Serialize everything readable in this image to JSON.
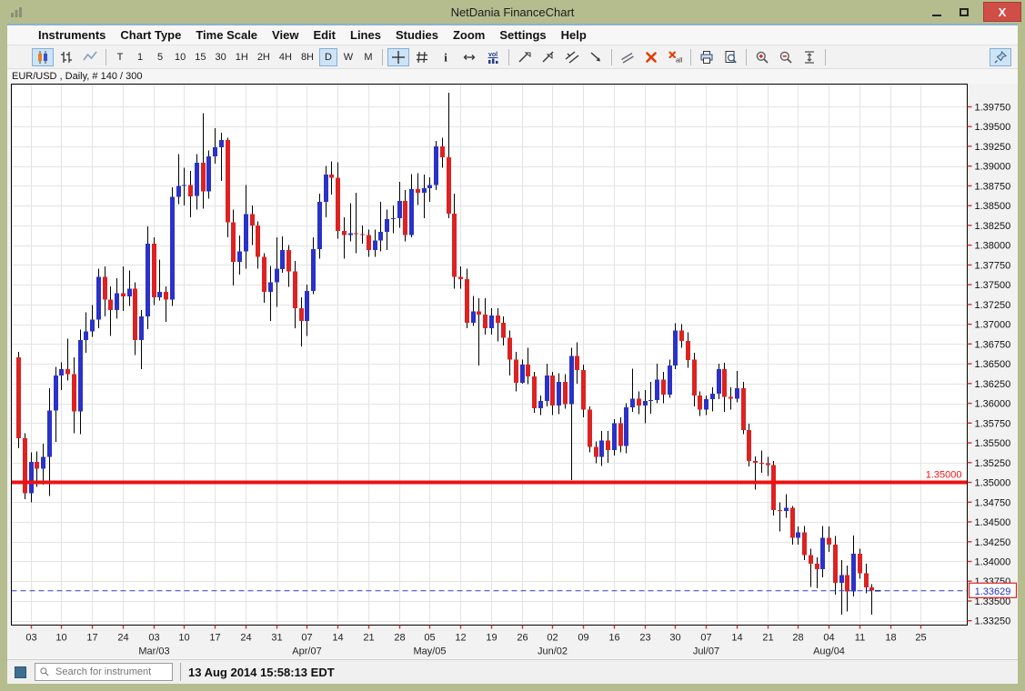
{
  "window": {
    "title": "NetDania FinanceChart",
    "controls": {
      "minimize": "minimize",
      "maximize": "maximize",
      "close": "close"
    }
  },
  "menu": {
    "items": [
      "Instruments",
      "Chart Type",
      "Time Scale",
      "View",
      "Edit",
      "Lines",
      "Studies",
      "Zoom",
      "Settings",
      "Help"
    ]
  },
  "toolbar": {
    "chart_type_buttons": [
      {
        "name": "candlestick-chart",
        "selected": true
      },
      {
        "name": "bar-chart",
        "selected": false
      },
      {
        "name": "line-chart",
        "selected": false
      }
    ],
    "timeframes": {
      "options": [
        "T",
        "1",
        "5",
        "10",
        "15",
        "30",
        "1H",
        "2H",
        "4H",
        "8H",
        "D",
        "W",
        "M"
      ],
      "selected": "D"
    },
    "tool_groups": [
      [
        {
          "name": "crosshair",
          "selected": true
        },
        {
          "name": "grid",
          "selected": false
        },
        {
          "name": "info",
          "selected": false
        },
        {
          "name": "horizontal-scale",
          "selected": false
        },
        {
          "name": "volume",
          "selected": false
        }
      ],
      [
        {
          "name": "trend-line",
          "selected": false
        },
        {
          "name": "trend-line-extended",
          "selected": false
        },
        {
          "name": "parallel-channel",
          "selected": false
        },
        {
          "name": "arrow-tool",
          "selected": false
        }
      ],
      [
        {
          "name": "angle-lines",
          "selected": false
        },
        {
          "name": "delete-line",
          "selected": false
        },
        {
          "name": "delete-all-lines",
          "selected": false
        }
      ],
      [
        {
          "name": "print",
          "selected": false
        },
        {
          "name": "print-preview",
          "selected": false
        }
      ],
      [
        {
          "name": "zoom-in",
          "selected": false
        },
        {
          "name": "zoom-out",
          "selected": false
        },
        {
          "name": "fit-vertical",
          "selected": false
        }
      ]
    ],
    "pin_button": {
      "name": "pin",
      "selected": true
    }
  },
  "chart": {
    "instrument_label": "EUR/USD , Daily, # 140 / 300"
  },
  "chart_data": {
    "type": "candlestick",
    "instrument": "EUR/USD",
    "timeframe": "Daily",
    "bars_shown": "140 / 300",
    "colors": {
      "up_candle": "#2a32c8",
      "down_candle": "#dd2222",
      "wick": "#000000",
      "grid": "#e4e4e4",
      "level_line": "#ee1111",
      "last_price_line": "#2b3fd6",
      "badge_text": "#2233cc",
      "badge_border": "#dd2222",
      "tick": "#cc3333"
    },
    "y_axis": {
      "min": 1.3325,
      "max": 1.3975,
      "step": 0.0025,
      "decimals": 5,
      "top_price": 1.40037,
      "bottom_price": 1.33195
    },
    "levels": [
      {
        "price": 1.35,
        "label": "1.35000",
        "style": "solid",
        "width": 4
      },
      {
        "price": 1.33629,
        "label": "1.33629",
        "style": "dashed",
        "width": 1,
        "badge": true
      }
    ],
    "last_price": "1.33629",
    "x_ticks": [
      {
        "i": 2,
        "label": "03"
      },
      {
        "i": 7,
        "label": "10"
      },
      {
        "i": 12,
        "label": "17"
      },
      {
        "i": 17,
        "label": "24"
      },
      {
        "i": 22,
        "label": "03",
        "month": "Mar/03"
      },
      {
        "i": 27,
        "label": "10"
      },
      {
        "i": 32,
        "label": "17"
      },
      {
        "i": 37,
        "label": "24"
      },
      {
        "i": 42,
        "label": "31"
      },
      {
        "i": 47,
        "label": "07",
        "month": "Apr/07"
      },
      {
        "i": 52,
        "label": "14"
      },
      {
        "i": 57,
        "label": "21"
      },
      {
        "i": 62,
        "label": "28"
      },
      {
        "i": 67,
        "label": "05",
        "month": "May/05"
      },
      {
        "i": 72,
        "label": "12"
      },
      {
        "i": 77,
        "label": "19"
      },
      {
        "i": 82,
        "label": "26"
      },
      {
        "i": 87,
        "label": "02",
        "month": "Jun/02"
      },
      {
        "i": 92,
        "label": "09"
      },
      {
        "i": 97,
        "label": "16"
      },
      {
        "i": 102,
        "label": "23"
      },
      {
        "i": 107,
        "label": "30"
      },
      {
        "i": 112,
        "label": "07",
        "month": "Jul/07"
      },
      {
        "i": 117,
        "label": "14"
      },
      {
        "i": 122,
        "label": "21"
      },
      {
        "i": 127,
        "label": "28"
      },
      {
        "i": 132,
        "label": "04",
        "month": "Aug/04"
      },
      {
        "i": 137,
        "label": "11"
      },
      {
        "i": 142,
        "label": "18"
      },
      {
        "i": 147,
        "label": "25"
      }
    ],
    "candles": [
      [
        "Jan 30",
        1.3658,
        1.3665,
        1.3543,
        1.3556
      ],
      [
        "Jan 31",
        1.3556,
        1.3562,
        1.3479,
        1.3486
      ],
      [
        "Feb 03",
        1.3486,
        1.3538,
        1.3475,
        1.3526
      ],
      [
        "Feb 04",
        1.3526,
        1.3539,
        1.3494,
        1.3517
      ],
      [
        "Feb 05",
        1.3517,
        1.3549,
        1.3497,
        1.3532
      ],
      [
        "Feb 06",
        1.3532,
        1.3619,
        1.3483,
        1.3591
      ],
      [
        "Feb 07",
        1.3591,
        1.3646,
        1.3551,
        1.3635
      ],
      [
        "Feb 10",
        1.3635,
        1.3652,
        1.3617,
        1.3643
      ],
      [
        "Feb 11",
        1.3643,
        1.3682,
        1.3629,
        1.3637
      ],
      [
        "Feb 12",
        1.3637,
        1.3658,
        1.3562,
        1.359
      ],
      [
        "Feb 13",
        1.359,
        1.3693,
        1.3561,
        1.368
      ],
      [
        "Feb 14",
        1.368,
        1.3715,
        1.3664,
        1.3691
      ],
      [
        "Feb 17",
        1.3691,
        1.3724,
        1.3684,
        1.3706
      ],
      [
        "Feb 18",
        1.3706,
        1.377,
        1.3695,
        1.376
      ],
      [
        "Feb 19",
        1.376,
        1.3773,
        1.371,
        1.3731
      ],
      [
        "Feb 20",
        1.3731,
        1.3748,
        1.3685,
        1.3718
      ],
      [
        "Feb 21",
        1.3718,
        1.3758,
        1.3707,
        1.3739
      ],
      [
        "Feb 24",
        1.3739,
        1.3773,
        1.3717,
        1.3735
      ],
      [
        "Feb 25",
        1.3735,
        1.3768,
        1.3723,
        1.3745
      ],
      [
        "Feb 26",
        1.3745,
        1.3753,
        1.3661,
        1.368
      ],
      [
        "Feb 27",
        1.368,
        1.3718,
        1.3643,
        1.371
      ],
      [
        "Feb 28",
        1.371,
        1.3824,
        1.3694,
        1.3802
      ],
      [
        "Mar 03",
        1.3802,
        1.381,
        1.3724,
        1.3734
      ],
      [
        "Mar 04",
        1.3734,
        1.3782,
        1.373,
        1.3741
      ],
      [
        "Mar 05",
        1.3741,
        1.3748,
        1.3703,
        1.3731
      ],
      [
        "Mar 06",
        1.3731,
        1.3873,
        1.3723,
        1.3861
      ],
      [
        "Mar 07",
        1.3861,
        1.3915,
        1.3852,
        1.3875
      ],
      [
        "Mar 10",
        1.3875,
        1.3898,
        1.385,
        1.3876
      ],
      [
        "Mar 11",
        1.3876,
        1.3894,
        1.3835,
        1.3862
      ],
      [
        "Mar 12",
        1.3862,
        1.3915,
        1.3845,
        1.3904
      ],
      [
        "Mar 13",
        1.3904,
        1.3967,
        1.3846,
        1.3868
      ],
      [
        "Mar 14",
        1.3868,
        1.392,
        1.3859,
        1.3912
      ],
      [
        "Mar 17",
        1.3912,
        1.3948,
        1.3903,
        1.3924
      ],
      [
        "Mar 18",
        1.3924,
        1.3942,
        1.3881,
        1.3933
      ],
      [
        "Mar 19",
        1.3933,
        1.3936,
        1.381,
        1.3829
      ],
      [
        "Mar 20",
        1.3829,
        1.3845,
        1.3749,
        1.3779
      ],
      [
        "Mar 21",
        1.3779,
        1.3812,
        1.3763,
        1.3792
      ],
      [
        "Mar 24",
        1.3792,
        1.3876,
        1.377,
        1.3839
      ],
      [
        "Mar 25",
        1.3839,
        1.385,
        1.38,
        1.3825
      ],
      [
        "Mar 26",
        1.3825,
        1.383,
        1.377,
        1.3785
      ],
      [
        "Mar 27",
        1.3785,
        1.379,
        1.3727,
        1.3741
      ],
      [
        "Mar 28",
        1.3741,
        1.3774,
        1.3704,
        1.3753
      ],
      [
        "Mar 31",
        1.3753,
        1.381,
        1.3722,
        1.377
      ],
      [
        "Apr 01",
        1.377,
        1.3811,
        1.3765,
        1.3794
      ],
      [
        "Apr 02",
        1.3794,
        1.38,
        1.3747,
        1.3767
      ],
      [
        "Apr 03",
        1.3767,
        1.378,
        1.3695,
        1.372
      ],
      [
        "Apr 04",
        1.372,
        1.3734,
        1.3672,
        1.3704
      ],
      [
        "Apr 07",
        1.3704,
        1.375,
        1.3685,
        1.3742
      ],
      [
        "Apr 08",
        1.3742,
        1.381,
        1.3738,
        1.3795
      ],
      [
        "Apr 09",
        1.3795,
        1.3865,
        1.3783,
        1.3855
      ],
      [
        "Apr 10",
        1.3855,
        1.39,
        1.3835,
        1.3889
      ],
      [
        "Apr 11",
        1.3889,
        1.3906,
        1.3864,
        1.3885
      ],
      [
        "Apr 14",
        1.3885,
        1.3905,
        1.3808,
        1.3818
      ],
      [
        "Apr 15",
        1.3818,
        1.3835,
        1.3783,
        1.3813
      ],
      [
        "Apr 16",
        1.3813,
        1.3853,
        1.3805,
        1.3815
      ],
      [
        "Apr 17",
        1.3815,
        1.3866,
        1.379,
        1.3814
      ],
      [
        "Apr 18",
        1.3814,
        1.3825,
        1.3802,
        1.3813
      ],
      [
        "Apr 21",
        1.3813,
        1.382,
        1.3785,
        1.3794
      ],
      [
        "Apr 22",
        1.3794,
        1.382,
        1.3785,
        1.3806
      ],
      [
        "Apr 23",
        1.3806,
        1.3855,
        1.3792,
        1.3817
      ],
      [
        "Apr 24",
        1.3817,
        1.3845,
        1.3794,
        1.3833
      ],
      [
        "Apr 25",
        1.3833,
        1.385,
        1.3815,
        1.3834
      ],
      [
        "Apr 28",
        1.3834,
        1.388,
        1.3822,
        1.3856
      ],
      [
        "Apr 29",
        1.3856,
        1.387,
        1.3805,
        1.3813
      ],
      [
        "Apr 30",
        1.3813,
        1.389,
        1.381,
        1.3871
      ],
      [
        "May 01",
        1.3871,
        1.3891,
        1.3851,
        1.3866
      ],
      [
        "May 02",
        1.3866,
        1.3889,
        1.3834,
        1.3872
      ],
      [
        "May 05",
        1.3872,
        1.3886,
        1.3855,
        1.3876
      ],
      [
        "May 06",
        1.3876,
        1.3932,
        1.387,
        1.3925
      ],
      [
        "May 07",
        1.3925,
        1.3936,
        1.3898,
        1.3911
      ],
      [
        "May 08",
        1.3911,
        1.3993,
        1.3834,
        1.384
      ],
      [
        "May 09",
        1.384,
        1.3865,
        1.3745,
        1.376
      ],
      [
        "May 12",
        1.376,
        1.3773,
        1.3745,
        1.3757
      ],
      [
        "May 13",
        1.3757,
        1.377,
        1.3695,
        1.3702
      ],
      [
        "May 14",
        1.3702,
        1.3736,
        1.3698,
        1.3716
      ],
      [
        "May 15",
        1.3716,
        1.3733,
        1.3648,
        1.3712
      ],
      [
        "May 16",
        1.3712,
        1.3733,
        1.3687,
        1.3695
      ],
      [
        "May 19",
        1.3695,
        1.372,
        1.3687,
        1.3711
      ],
      [
        "May 20",
        1.3711,
        1.372,
        1.3678,
        1.3702
      ],
      [
        "May 21",
        1.3702,
        1.371,
        1.3673,
        1.3683
      ],
      [
        "May 22",
        1.3683,
        1.3692,
        1.3635,
        1.3655
      ],
      [
        "May 23",
        1.3655,
        1.3665,
        1.3615,
        1.3626
      ],
      [
        "May 26",
        1.3626,
        1.3655,
        1.3625,
        1.3649
      ],
      [
        "May 27",
        1.3649,
        1.367,
        1.3624,
        1.3634
      ],
      [
        "May 28",
        1.3634,
        1.364,
        1.3588,
        1.3594
      ],
      [
        "May 29",
        1.3594,
        1.361,
        1.3585,
        1.3603
      ],
      [
        "May 30",
        1.3603,
        1.365,
        1.3596,
        1.3635
      ],
      [
        "Jun 02",
        1.3635,
        1.364,
        1.3585,
        1.3597
      ],
      [
        "Jun 03",
        1.3597,
        1.3638,
        1.3586,
        1.3627
      ],
      [
        "Jun 04",
        1.3627,
        1.3637,
        1.3593,
        1.3599
      ],
      [
        "Jun 05",
        1.3599,
        1.367,
        1.3503,
        1.366
      ],
      [
        "Jun 06",
        1.366,
        1.3677,
        1.3625,
        1.3642
      ],
      [
        "Jun 09",
        1.3642,
        1.3649,
        1.3582,
        1.3592
      ],
      [
        "Jun 10",
        1.3592,
        1.3596,
        1.3538,
        1.3545
      ],
      [
        "Jun 11",
        1.3545,
        1.3552,
        1.3524,
        1.3532
      ],
      [
        "Jun 12",
        1.3532,
        1.3565,
        1.3521,
        1.3553
      ],
      [
        "Jun 13",
        1.3553,
        1.3565,
        1.3525,
        1.3541
      ],
      [
        "Jun 16",
        1.3541,
        1.358,
        1.3534,
        1.3575
      ],
      [
        "Jun 17",
        1.3575,
        1.3582,
        1.3538,
        1.3546
      ],
      [
        "Jun 18",
        1.3546,
        1.36,
        1.3537,
        1.3595
      ],
      [
        "Jun 19",
        1.3595,
        1.3644,
        1.3589,
        1.3606
      ],
      [
        "Jun 20",
        1.3606,
        1.3615,
        1.3586,
        1.3597
      ],
      [
        "Jun 23",
        1.3597,
        1.3617,
        1.3575,
        1.3603
      ],
      [
        "Jun 24",
        1.3603,
        1.3627,
        1.3587,
        1.3604
      ],
      [
        "Jun 25",
        1.3604,
        1.365,
        1.36,
        1.363
      ],
      [
        "Jun 26",
        1.363,
        1.364,
        1.36,
        1.3611
      ],
      [
        "Jun 27",
        1.3611,
        1.3655,
        1.3607,
        1.3648
      ],
      [
        "Jun 30",
        1.3648,
        1.3701,
        1.3643,
        1.3692
      ],
      [
        "Jul 01",
        1.3692,
        1.37,
        1.367,
        1.3679
      ],
      [
        "Jul 02",
        1.3679,
        1.369,
        1.3645,
        1.3655
      ],
      [
        "Jul 03",
        1.3655,
        1.3664,
        1.3596,
        1.361
      ],
      [
        "Jul 04",
        1.361,
        1.3615,
        1.3584,
        1.3592
      ],
      [
        "Jul 07",
        1.3592,
        1.361,
        1.3585,
        1.3605
      ],
      [
        "Jul 08",
        1.3605,
        1.362,
        1.359,
        1.3612
      ],
      [
        "Jul 09",
        1.3612,
        1.365,
        1.3605,
        1.3643
      ],
      [
        "Jul 10",
        1.3643,
        1.3651,
        1.3589,
        1.3608
      ],
      [
        "Jul 11",
        1.3608,
        1.362,
        1.3592,
        1.3606
      ],
      [
        "Jul 14",
        1.3606,
        1.3641,
        1.3601,
        1.3619
      ],
      [
        "Jul 15",
        1.3619,
        1.3627,
        1.3561,
        1.3566
      ],
      [
        "Jul 16",
        1.3566,
        1.3574,
        1.352,
        1.3527
      ],
      [
        "Jul 17",
        1.3527,
        1.3533,
        1.3491,
        1.3525
      ],
      [
        "Jul 18",
        1.3525,
        1.354,
        1.3512,
        1.3524
      ],
      [
        "Jul 21",
        1.3524,
        1.3532,
        1.3508,
        1.3522
      ],
      [
        "Jul 22",
        1.3522,
        1.3527,
        1.3458,
        1.3465
      ],
      [
        "Jul 23",
        1.3465,
        1.3475,
        1.3438,
        1.3464
      ],
      [
        "Jul 24",
        1.3464,
        1.3485,
        1.3455,
        1.3468
      ],
      [
        "Jul 25",
        1.3468,
        1.347,
        1.3421,
        1.343
      ],
      [
        "Jul 28",
        1.343,
        1.3444,
        1.3421,
        1.3437
      ],
      [
        "Jul 29",
        1.3437,
        1.3445,
        1.3402,
        1.3408
      ],
      [
        "Jul 30",
        1.3408,
        1.3416,
        1.3368,
        1.3397
      ],
      [
        "Jul 31",
        1.3397,
        1.3405,
        1.3366,
        1.339
      ],
      [
        "Aug 01",
        1.339,
        1.3445,
        1.338,
        1.343
      ],
      [
        "Aug 04",
        1.343,
        1.3444,
        1.3412,
        1.3421
      ],
      [
        "Aug 05",
        1.3421,
        1.3432,
        1.3358,
        1.3373
      ],
      [
        "Aug 06",
        1.3373,
        1.3402,
        1.3333,
        1.3383
      ],
      [
        "Aug 07",
        1.3383,
        1.3395,
        1.3337,
        1.3362
      ],
      [
        "Aug 08",
        1.3362,
        1.3433,
        1.3356,
        1.341
      ],
      [
        "Aug 11",
        1.341,
        1.3416,
        1.3378,
        1.3385
      ],
      [
        "Aug 12",
        1.3385,
        1.3397,
        1.336,
        1.3367
      ],
      [
        "Aug 13",
        1.3367,
        1.3371,
        1.3333,
        1.3363
      ]
    ]
  },
  "statusbar": {
    "search_placeholder": "Search for instrument",
    "timestamp": "13 Aug 2014 15:58:13 EDT"
  }
}
